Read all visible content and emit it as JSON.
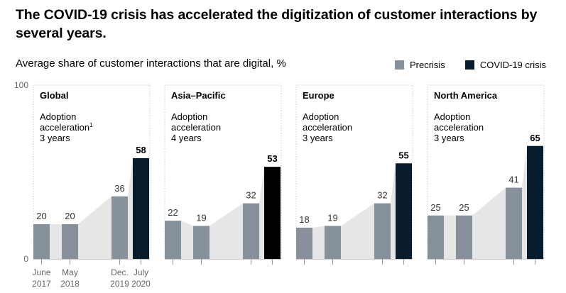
{
  "headline": "The COVID-19 crisis has accelerated the digitization of customer interactions by several years.",
  "subtitle": "Average share of customer interactions that are digital,",
  "subtitle_unit": "%",
  "legend": [
    {
      "label": "Precrisis",
      "color": "#87919b"
    },
    {
      "label": "COVID-19 crisis",
      "color": "#071c2c"
    }
  ],
  "colors": {
    "precrisis": "#87919b",
    "covid": "#071c2c",
    "area": "#e6e6e6",
    "border": "#cccccc"
  },
  "chart_data": {
    "type": "bar",
    "ylim": [
      0,
      100
    ],
    "yticks": [
      "100",
      "0"
    ],
    "categories": [
      [
        "June",
        "2017"
      ],
      [
        "May",
        "2018"
      ],
      [
        "Dec.",
        "2019"
      ],
      [
        "July",
        "2020"
      ]
    ],
    "panels": [
      {
        "title": "Global",
        "note_lines": [
          "Adoption",
          "acceleration",
          "3 years"
        ],
        "note_sup": "1",
        "values": [
          20,
          20,
          36,
          58
        ],
        "labels": [
          "20",
          "20",
          "36",
          "58"
        ],
        "covid_color": "#071c2c"
      },
      {
        "title": "Asia–Pacific",
        "note_lines": [
          "Adoption",
          "acceleration",
          "4 years"
        ],
        "note_sup": "",
        "values": [
          22,
          19,
          32,
          53
        ],
        "labels": [
          "22",
          "19",
          "32",
          "53"
        ],
        "covid_color": "#000000"
      },
      {
        "title": "Europe",
        "note_lines": [
          "Adoption",
          "acceleration",
          "3 years"
        ],
        "note_sup": "",
        "values": [
          18,
          19,
          32,
          55
        ],
        "labels": [
          "18",
          "19",
          "32",
          "55"
        ],
        "covid_color": "#071c2c"
      },
      {
        "title": "North America",
        "note_lines": [
          "Adoption",
          "acceleration",
          "3 years"
        ],
        "note_sup": "",
        "values": [
          25,
          25,
          41,
          65
        ],
        "labels": [
          "25",
          "25",
          "41",
          "65"
        ],
        "covid_color": "#071c2c"
      }
    ]
  }
}
